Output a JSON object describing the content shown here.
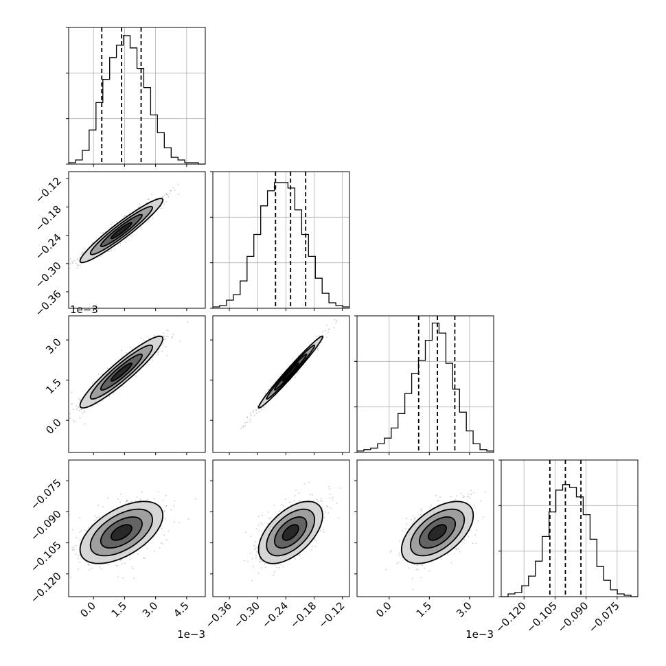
{
  "chart_data": {
    "type": "corner",
    "title": "",
    "parameters": [
      {
        "range": [
          -1.2,
          5.4
        ],
        "ticks": [
          0.0,
          1.5,
          3.0,
          4.5
        ],
        "tick_labels": [
          "0.0",
          "1.5",
          "3.0",
          "4.5"
        ],
        "offset_label": "1e−3",
        "quantiles": [
          0.4,
          1.35,
          2.3
        ]
      },
      {
        "range": [
          -0.395,
          -0.105
        ],
        "ticks": [
          -0.36,
          -0.3,
          -0.24,
          -0.18,
          -0.12
        ],
        "tick_labels": [
          "−0.36",
          "−0.30",
          "−0.24",
          "−0.18",
          "−0.12"
        ],
        "offset_label": "",
        "quantiles": [
          -0.262,
          -0.23,
          -0.198
        ]
      },
      {
        "range": [
          -1.2,
          3.9
        ],
        "ticks": [
          0.0,
          1.5,
          3.0
        ],
        "tick_labels": [
          "0.0",
          "1.5",
          "3.0"
        ],
        "offset_label": "1e−3",
        "quantiles": [
          1.1,
          1.8,
          2.45
        ]
      },
      {
        "range": [
          -0.131,
          -0.065
        ],
        "ticks": [
          -0.12,
          -0.105,
          -0.09,
          -0.075
        ],
        "tick_labels": [
          "−0.120",
          "−0.105",
          "−0.090",
          "−0.075"
        ],
        "offset_label": "",
        "quantiles": [
          -0.1075,
          -0.1,
          -0.0925
        ]
      }
    ],
    "histograms": [
      {
        "param": 0,
        "bins": [
          -1.2,
          -0.87,
          -0.54,
          -0.21,
          0.12,
          0.45,
          0.78,
          1.11,
          1.44,
          1.77,
          2.1,
          2.43,
          2.76,
          3.09,
          3.42,
          3.75,
          4.08,
          4.41,
          4.74,
          5.07,
          5.4
        ],
        "counts": [
          1,
          3,
          10,
          25,
          45,
          62,
          78,
          87,
          94,
          85,
          70,
          56,
          36,
          23,
          12,
          5,
          3,
          1,
          1,
          0
        ],
        "ymax": 100
      },
      {
        "param": 1,
        "bins": [
          -0.395,
          -0.3805,
          -0.366,
          -0.3515,
          -0.337,
          -0.3225,
          -0.308,
          -0.2935,
          -0.279,
          -0.2645,
          -0.25,
          -0.2355,
          -0.221,
          -0.2065,
          -0.192,
          -0.1775,
          -0.163,
          -0.1485,
          -0.134,
          -0.1195,
          -0.105
        ],
        "counts": [
          1,
          2,
          6,
          10,
          20,
          38,
          54,
          75,
          86,
          92,
          92,
          88,
          72,
          54,
          38,
          22,
          11,
          4,
          2,
          1
        ],
        "ymax": 100
      },
      {
        "param": 2,
        "bins": [
          -1.2,
          -0.945,
          -0.69,
          -0.435,
          -0.18,
          0.075,
          0.33,
          0.585,
          0.84,
          1.095,
          1.35,
          1.605,
          1.86,
          2.115,
          2.37,
          2.625,
          2.88,
          3.135,
          3.39,
          3.645,
          3.9
        ],
        "counts": [
          1,
          2,
          3,
          6,
          10,
          17,
          27,
          41,
          55,
          64,
          78,
          90,
          83,
          62,
          44,
          28,
          15,
          6,
          2,
          1
        ],
        "ymax": 95
      },
      {
        "param": 3,
        "bins": [
          -0.131,
          -0.1277,
          -0.1244,
          -0.1211,
          -0.1178,
          -0.1145,
          -0.1112,
          -0.1079,
          -0.1046,
          -0.1013,
          -0.098,
          -0.0947,
          -0.0914,
          -0.0881,
          -0.0848,
          -0.0815,
          -0.0782,
          -0.0749,
          -0.0716,
          -0.0683,
          -0.065
        ],
        "counts": [
          0,
          2,
          3,
          8,
          15,
          26,
          44,
          62,
          78,
          82,
          80,
          73,
          60,
          42,
          22,
          12,
          5,
          2,
          1,
          0
        ],
        "ymax": 100
      }
    ],
    "pairs": [
      {
        "row": 1,
        "col": 0,
        "mean": [
          1.35,
          -0.23
        ],
        "sd": [
          1.0,
          0.034
        ],
        "rho": 0.95
      },
      {
        "row": 2,
        "col": 0,
        "mean": [
          1.35,
          1.8
        ],
        "sd": [
          1.0,
          0.67
        ],
        "rho": 0.93
      },
      {
        "row": 2,
        "col": 1,
        "mean": [
          -0.23,
          1.8
        ],
        "sd": [
          0.034,
          0.67
        ],
        "rho": 0.985
      },
      {
        "row": 3,
        "col": 0,
        "mean": [
          1.35,
          -0.1
        ],
        "sd": [
          1.0,
          0.0075
        ],
        "rho": 0.55
      },
      {
        "row": 3,
        "col": 1,
        "mean": [
          -0.23,
          -0.1
        ],
        "sd": [
          0.034,
          0.0075
        ],
        "rho": 0.55
      },
      {
        "row": 3,
        "col": 2,
        "mean": [
          1.8,
          -0.1
        ],
        "sd": [
          0.67,
          0.0075
        ],
        "rho": 0.55
      }
    ],
    "contour_levels_sigma": [
      0.5,
      1.0,
      1.5,
      2.0
    ],
    "grid": true
  }
}
